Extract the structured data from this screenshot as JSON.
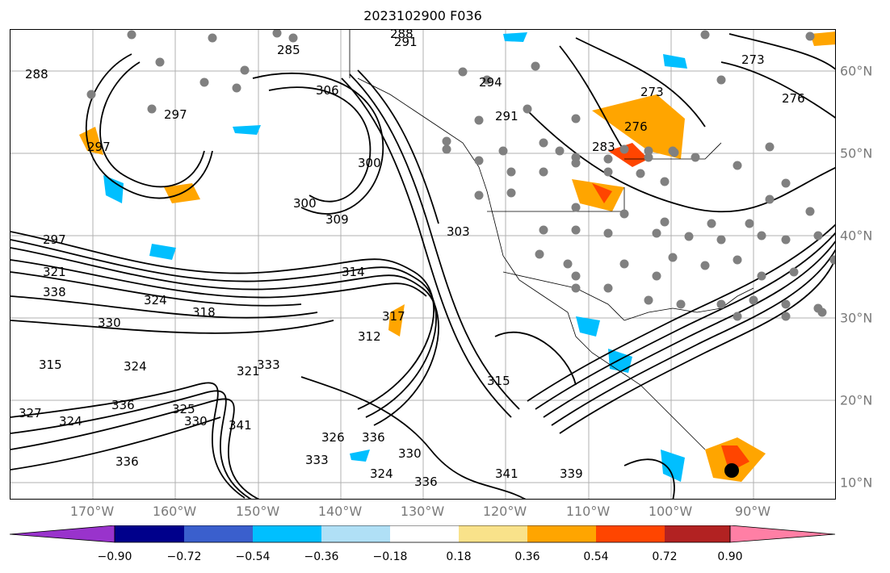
{
  "map": {
    "title": "2023102900 F036",
    "lon_labels": [
      "170°W",
      "160°W",
      "150°W",
      "140°W",
      "130°W",
      "120°W",
      "110°W",
      "100°W",
      "90°W"
    ],
    "lat_labels": [
      "60°N",
      "50°N",
      "40°N",
      "30°N",
      "20°N",
      "10°N"
    ],
    "contour_labels": [
      "288",
      "291",
      "285",
      "288",
      "273",
      "306",
      "297",
      "297",
      "273",
      "276",
      "294",
      "291",
      "276",
      "283",
      "300",
      "300",
      "309",
      "303",
      "297",
      "321",
      "314",
      "324",
      "318",
      "312",
      "338",
      "330",
      "317",
      "315",
      "324",
      "315",
      "321",
      "325",
      "333",
      "336",
      "341",
      "330",
      "327",
      "326",
      "336",
      "330",
      "324",
      "333",
      "324",
      "336",
      "341",
      "339",
      "336"
    ],
    "grid_color": "#b0b0b0",
    "label_color": "#7a7a7a",
    "fill_colors": {
      "positive_light": "#ffa500",
      "positive_strong": "#ff4500",
      "negative_light": "#00bfff",
      "dots": "#808080"
    }
  },
  "colorbar": {
    "ticks": [
      "−0.90",
      "−0.72",
      "−0.54",
      "−0.36",
      "−0.18",
      "0.18",
      "0.36",
      "0.54",
      "0.72",
      "0.90"
    ],
    "colors": [
      "#9933cc",
      "#00008b",
      "#3a5fcd",
      "#00bfff",
      "#b0e0f6",
      "#ffffff",
      "#f9e28a",
      "#ffa500",
      "#ff4500",
      "#b22222",
      "#ff7fa5"
    ]
  }
}
